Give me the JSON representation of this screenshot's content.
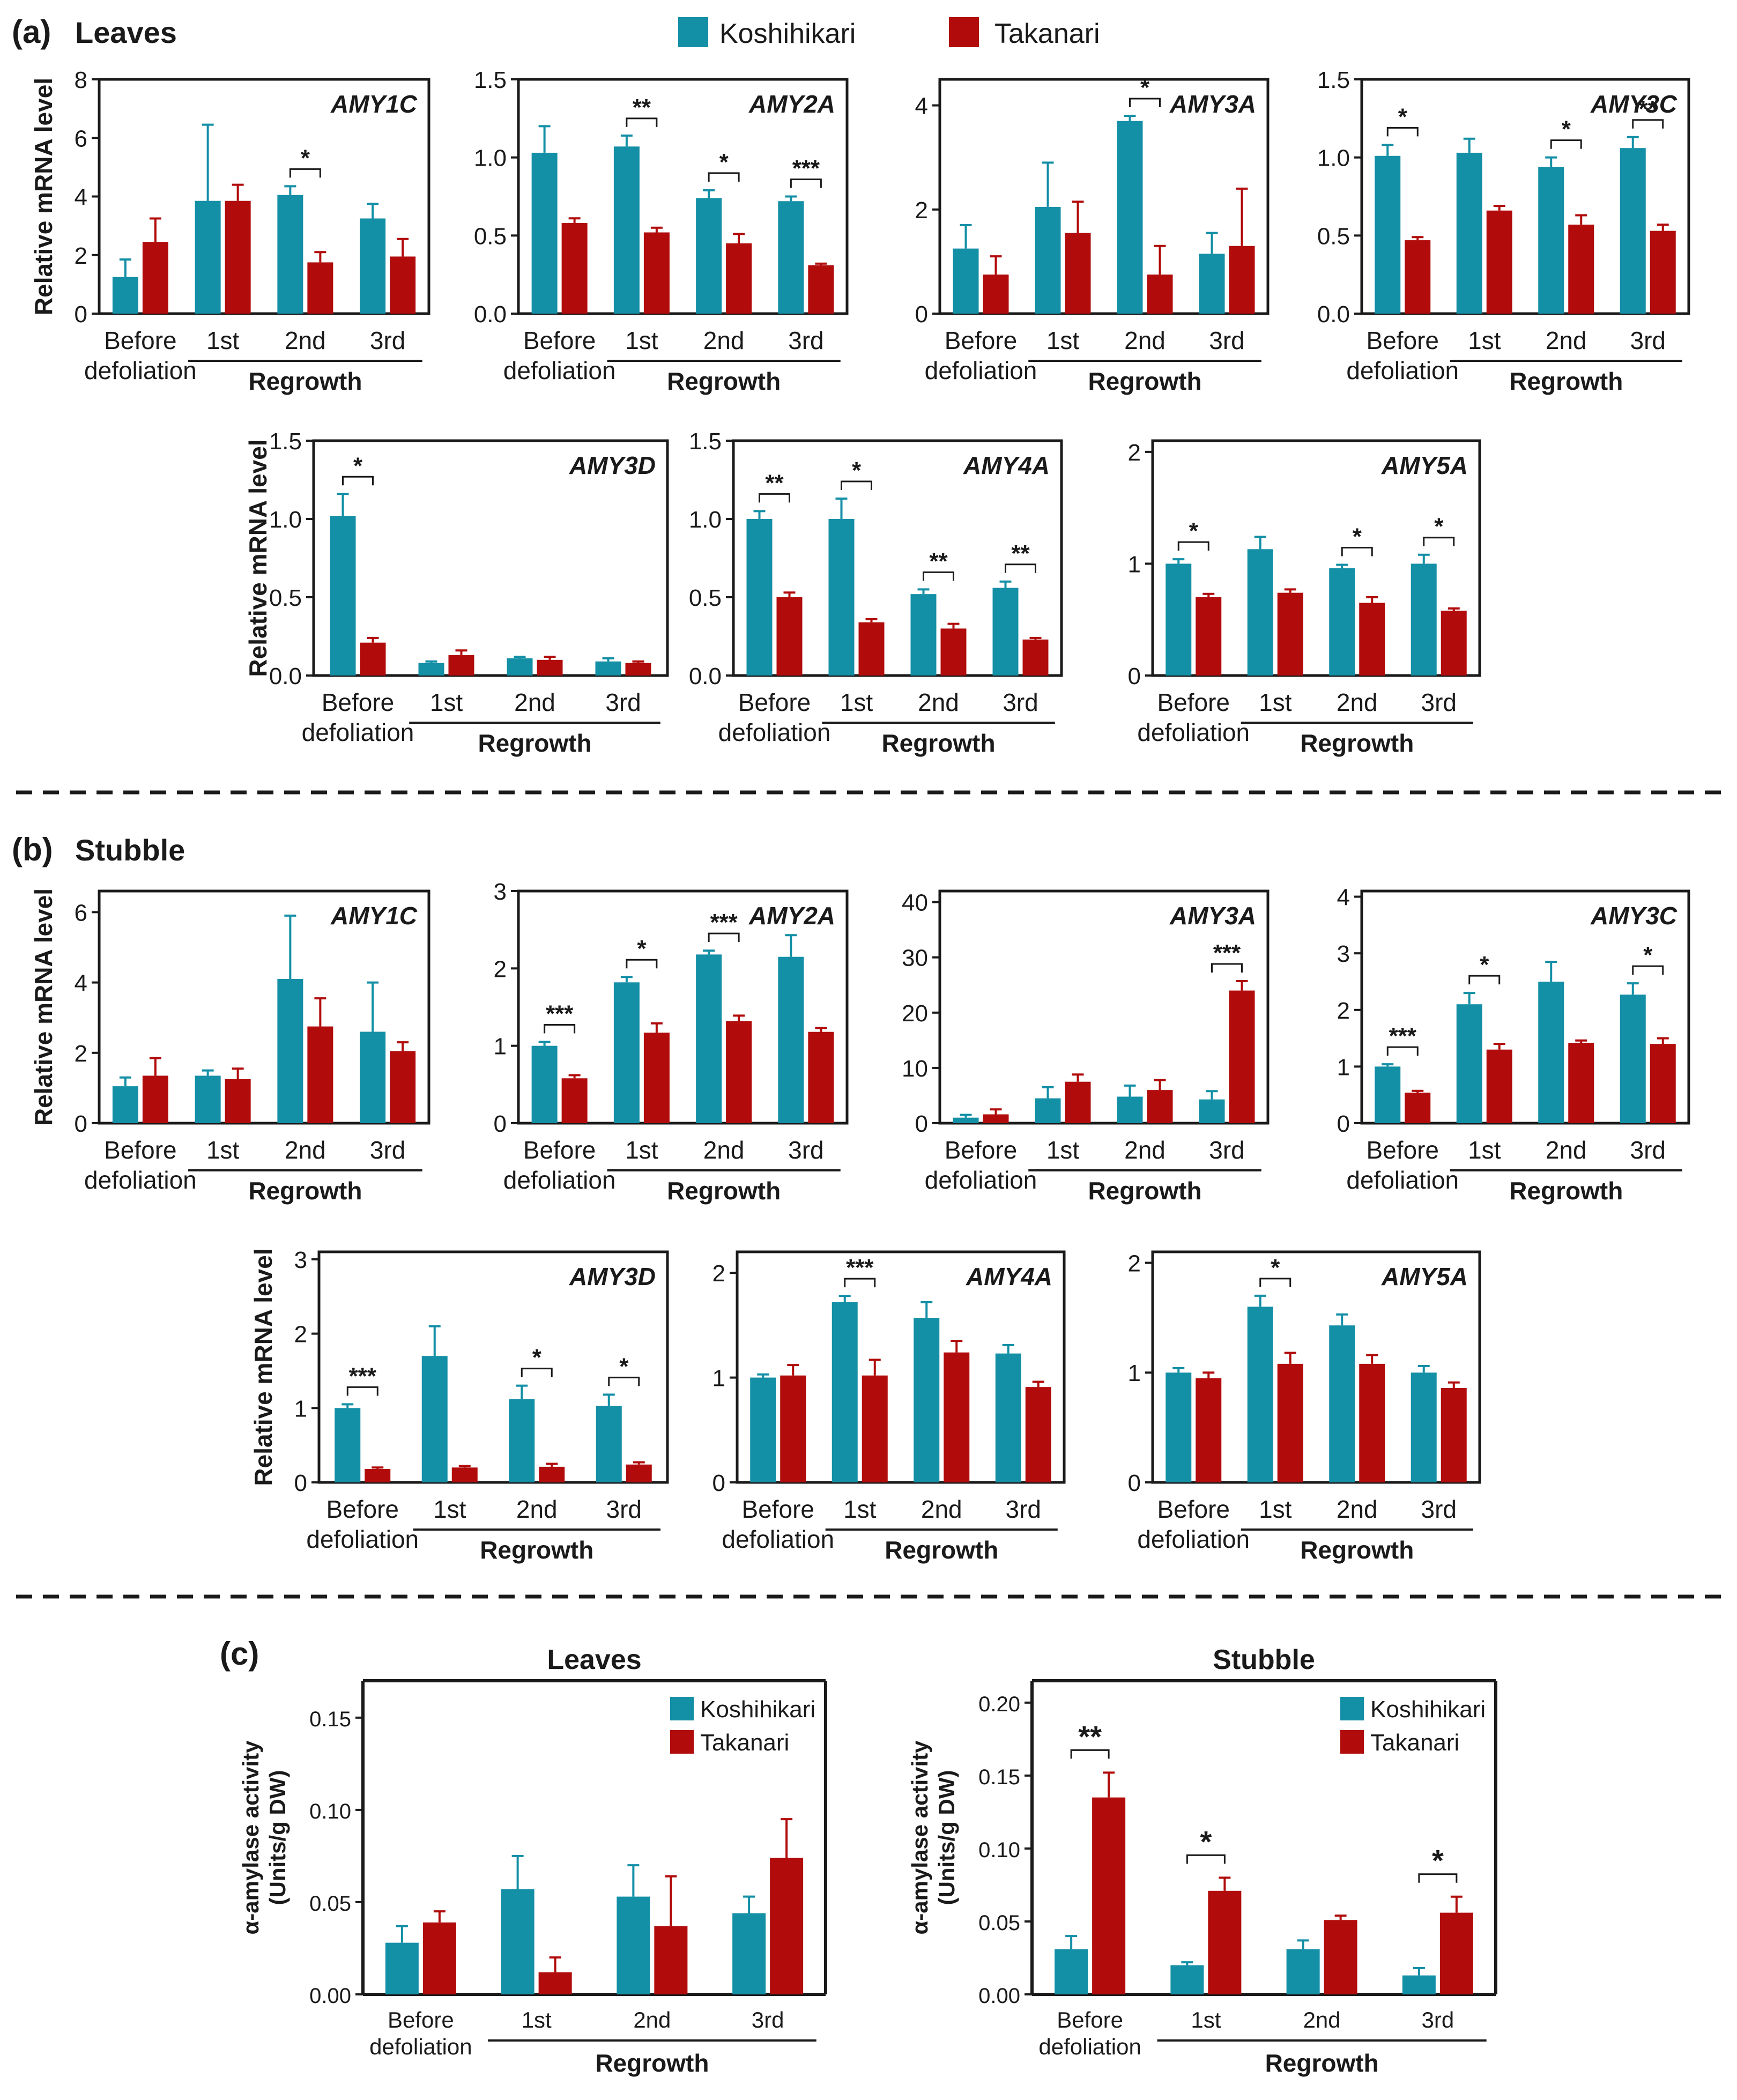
{
  "legend": {
    "koshihikari": "Koshihikari",
    "takanari": "Takanari"
  },
  "colors": {
    "koshihikari": "#138fa6",
    "takanari": "#b10b0b",
    "axis": "#1a1a1a"
  },
  "panels": {
    "a": {
      "letter": "(a)",
      "title": "Leaves"
    },
    "b": {
      "letter": "(b)",
      "title": "Stubble"
    },
    "c": {
      "letter": "(c)"
    }
  },
  "axis_text": {
    "ylabel_mrna": "Relative mRNA level",
    "ylabel_activity_1": "α-amylase activity",
    "ylabel_activity_2": "(Units/g DW)",
    "before_1": "Before",
    "before_2": "defoliation",
    "regrowth": "Regrowth"
  },
  "chart_data": [
    {
      "id": "a1",
      "type": "bar",
      "title": "AMY1C",
      "group": "Leaves",
      "categories": [
        "Before defoliation",
        "1st",
        "2nd",
        "3rd"
      ],
      "ylim": [
        0,
        8
      ],
      "yticks": [
        "0",
        "2",
        "4",
        "6",
        "8"
      ],
      "ylabel": "Relative mRNA level",
      "series": [
        {
          "name": "Koshihikari",
          "values": [
            1.25,
            3.85,
            4.05,
            3.25
          ],
          "errors": [
            0.6,
            2.6,
            0.3,
            0.5
          ]
        },
        {
          "name": "Takanari",
          "values": [
            2.45,
            3.85,
            1.75,
            1.95
          ],
          "errors": [
            0.8,
            0.55,
            0.35,
            0.6
          ]
        }
      ],
      "significance": [
        {
          "category": 2,
          "label": "*"
        }
      ]
    },
    {
      "id": "a2",
      "type": "bar",
      "title": "AMY2A",
      "group": "Leaves",
      "categories": [
        "Before defoliation",
        "1st",
        "2nd",
        "3rd"
      ],
      "ylim": [
        0,
        1.5
      ],
      "yticks": [
        "0.0",
        "0.5",
        "1.0",
        "1.5"
      ],
      "series": [
        {
          "name": "Koshihikari",
          "values": [
            1.03,
            1.07,
            0.74,
            0.72
          ],
          "errors": [
            0.17,
            0.07,
            0.05,
            0.03
          ]
        },
        {
          "name": "Takanari",
          "values": [
            0.58,
            0.52,
            0.45,
            0.31
          ],
          "errors": [
            0.03,
            0.03,
            0.06,
            0.01
          ]
        }
      ],
      "significance": [
        {
          "category": 1,
          "label": "**"
        },
        {
          "category": 2,
          "label": "*"
        },
        {
          "category": 3,
          "label": "***"
        }
      ]
    },
    {
      "id": "a3",
      "type": "bar",
      "title": "AMY3A",
      "group": "Leaves",
      "categories": [
        "Before defoliation",
        "1st",
        "2nd",
        "3rd"
      ],
      "ylim": [
        0,
        4.5
      ],
      "yticks": [
        "0",
        "2",
        "4"
      ],
      "series": [
        {
          "name": "Koshihikari",
          "values": [
            1.25,
            2.05,
            3.7,
            1.15
          ],
          "errors": [
            0.45,
            0.85,
            0.1,
            0.4
          ]
        },
        {
          "name": "Takanari",
          "values": [
            0.75,
            1.55,
            0.75,
            1.3
          ],
          "errors": [
            0.35,
            0.6,
            0.55,
            1.1
          ]
        }
      ],
      "significance": [
        {
          "category": 2,
          "label": "*"
        }
      ]
    },
    {
      "id": "a4",
      "type": "bar",
      "title": "AMY3C",
      "group": "Leaves",
      "categories": [
        "Before defoliation",
        "1st",
        "2nd",
        "3rd"
      ],
      "ylim": [
        0,
        1.5
      ],
      "yticks": [
        "0.0",
        "0.5",
        "1.0",
        "1.5"
      ],
      "series": [
        {
          "name": "Koshihikari",
          "values": [
            1.01,
            1.03,
            0.94,
            1.06
          ],
          "errors": [
            0.07,
            0.09,
            0.06,
            0.07
          ]
        },
        {
          "name": "Takanari",
          "values": [
            0.47,
            0.66,
            0.57,
            0.53
          ],
          "errors": [
            0.02,
            0.03,
            0.06,
            0.04
          ]
        }
      ],
      "significance": [
        {
          "category": 0,
          "label": "*"
        },
        {
          "category": 2,
          "label": "*"
        },
        {
          "category": 3,
          "label": "**"
        }
      ]
    },
    {
      "id": "a5",
      "type": "bar",
      "title": "AMY3D",
      "group": "Leaves",
      "categories": [
        "Before defoliation",
        "1st",
        "2nd",
        "3rd"
      ],
      "ylim": [
        0,
        1.5
      ],
      "yticks": [
        "0.0",
        "0.5",
        "1.0",
        "1.5"
      ],
      "ylabel": "Relative mRNA level",
      "series": [
        {
          "name": "Koshihikari",
          "values": [
            1.02,
            0.08,
            0.11,
            0.09
          ],
          "errors": [
            0.14,
            0.01,
            0.01,
            0.02
          ]
        },
        {
          "name": "Takanari",
          "values": [
            0.21,
            0.13,
            0.1,
            0.08
          ],
          "errors": [
            0.03,
            0.03,
            0.02,
            0.01
          ]
        }
      ],
      "significance": [
        {
          "category": 0,
          "label": "*"
        }
      ]
    },
    {
      "id": "a6",
      "type": "bar",
      "title": "AMY4A",
      "group": "Leaves",
      "categories": [
        "Before defoliation",
        "1st",
        "2nd",
        "3rd"
      ],
      "ylim": [
        0,
        1.5
      ],
      "yticks": [
        "0.0",
        "0.5",
        "1.0",
        "1.5"
      ],
      "series": [
        {
          "name": "Koshihikari",
          "values": [
            1.0,
            1.0,
            0.52,
            0.56
          ],
          "errors": [
            0.05,
            0.13,
            0.03,
            0.04
          ]
        },
        {
          "name": "Takanari",
          "values": [
            0.5,
            0.34,
            0.3,
            0.23
          ],
          "errors": [
            0.03,
            0.02,
            0.03,
            0.01
          ]
        }
      ],
      "significance": [
        {
          "category": 0,
          "label": "**"
        },
        {
          "category": 1,
          "label": "*"
        },
        {
          "category": 2,
          "label": "**"
        },
        {
          "category": 3,
          "label": "**"
        }
      ]
    },
    {
      "id": "a7",
      "type": "bar",
      "title": "AMY5A",
      "group": "Leaves",
      "categories": [
        "Before defoliation",
        "1st",
        "2nd",
        "3rd"
      ],
      "ylim": [
        0,
        2.1
      ],
      "yticks": [
        "0",
        "1",
        "2"
      ],
      "series": [
        {
          "name": "Koshihikari",
          "values": [
            1.0,
            1.13,
            0.96,
            1.0
          ],
          "errors": [
            0.04,
            0.11,
            0.03,
            0.08
          ]
        },
        {
          "name": "Takanari",
          "values": [
            0.7,
            0.74,
            0.65,
            0.58
          ],
          "errors": [
            0.03,
            0.03,
            0.05,
            0.02
          ]
        }
      ],
      "significance": [
        {
          "category": 0,
          "label": "*"
        },
        {
          "category": 2,
          "label": "*"
        },
        {
          "category": 3,
          "label": "*"
        }
      ]
    },
    {
      "id": "b1",
      "type": "bar",
      "title": "AMY1C",
      "group": "Stubble",
      "categories": [
        "Before defoliation",
        "1st",
        "2nd",
        "3rd"
      ],
      "ylim": [
        0,
        6.6
      ],
      "yticks": [
        "0",
        "2",
        "4",
        "6"
      ],
      "ylabel": "Relative mRNA level",
      "series": [
        {
          "name": "Koshihikari",
          "values": [
            1.05,
            1.35,
            4.1,
            2.6
          ],
          "errors": [
            0.25,
            0.15,
            1.8,
            1.4
          ]
        },
        {
          "name": "Takanari",
          "values": [
            1.35,
            1.25,
            2.75,
            2.05
          ],
          "errors": [
            0.5,
            0.3,
            0.8,
            0.25
          ]
        }
      ],
      "significance": []
    },
    {
      "id": "b2",
      "type": "bar",
      "title": "AMY2A",
      "group": "Stubble",
      "categories": [
        "Before defoliation",
        "1st",
        "2nd",
        "3rd"
      ],
      "ylim": [
        0,
        3
      ],
      "yticks": [
        "0",
        "1",
        "2",
        "3"
      ],
      "series": [
        {
          "name": "Koshihikari",
          "values": [
            1.0,
            1.82,
            2.18,
            2.15
          ],
          "errors": [
            0.05,
            0.07,
            0.05,
            0.28
          ]
        },
        {
          "name": "Takanari",
          "values": [
            0.58,
            1.17,
            1.32,
            1.18
          ],
          "errors": [
            0.04,
            0.12,
            0.07,
            0.05
          ]
        }
      ],
      "significance": [
        {
          "category": 0,
          "label": "***"
        },
        {
          "category": 1,
          "label": "*"
        },
        {
          "category": 2,
          "label": "***"
        }
      ]
    },
    {
      "id": "b3",
      "type": "bar",
      "title": "AMY3A",
      "group": "Stubble",
      "categories": [
        "Before defoliation",
        "1st",
        "2nd",
        "3rd"
      ],
      "ylim": [
        0,
        42
      ],
      "yticks": [
        "0",
        "10",
        "20",
        "30",
        "40"
      ],
      "series": [
        {
          "name": "Koshihikari",
          "values": [
            1.0,
            4.5,
            4.8,
            4.3
          ],
          "errors": [
            0.5,
            2.0,
            2.0,
            1.5
          ]
        },
        {
          "name": "Takanari",
          "values": [
            1.6,
            7.5,
            6.0,
            24.0
          ],
          "errors": [
            0.9,
            1.3,
            1.8,
            1.7
          ]
        }
      ],
      "significance": [
        {
          "category": 3,
          "label": "***"
        }
      ]
    },
    {
      "id": "b4",
      "type": "bar",
      "title": "AMY3C",
      "group": "Stubble",
      "categories": [
        "Before defoliation",
        "1st",
        "2nd",
        "3rd"
      ],
      "ylim": [
        0,
        4.1
      ],
      "yticks": [
        "0",
        "1",
        "2",
        "3",
        "4"
      ],
      "series": [
        {
          "name": "Koshihikari",
          "values": [
            1.0,
            2.1,
            2.5,
            2.27
          ],
          "errors": [
            0.04,
            0.2,
            0.35,
            0.2
          ]
        },
        {
          "name": "Takanari",
          "values": [
            0.54,
            1.3,
            1.42,
            1.4
          ],
          "errors": [
            0.03,
            0.1,
            0.04,
            0.1
          ]
        }
      ],
      "significance": [
        {
          "category": 0,
          "label": "***"
        },
        {
          "category": 1,
          "label": "*"
        },
        {
          "category": 3,
          "label": "*"
        }
      ]
    },
    {
      "id": "b5",
      "type": "bar",
      "title": "AMY3D",
      "group": "Stubble",
      "categories": [
        "Before defoliation",
        "1st",
        "2nd",
        "3rd"
      ],
      "ylim": [
        0,
        3.1
      ],
      "yticks": [
        "0",
        "1",
        "2",
        "3"
      ],
      "ylabel": "Relative mRNA level",
      "series": [
        {
          "name": "Koshihikari",
          "values": [
            1.0,
            1.7,
            1.12,
            1.03
          ],
          "errors": [
            0.05,
            0.4,
            0.18,
            0.15
          ]
        },
        {
          "name": "Takanari",
          "values": [
            0.18,
            0.2,
            0.21,
            0.24
          ],
          "errors": [
            0.02,
            0.02,
            0.04,
            0.03
          ]
        }
      ],
      "significance": [
        {
          "category": 0,
          "label": "***"
        },
        {
          "category": 2,
          "label": "*"
        },
        {
          "category": 3,
          "label": "*"
        }
      ]
    },
    {
      "id": "b6",
      "type": "bar",
      "title": "AMY4A",
      "group": "Stubble",
      "categories": [
        "Before defoliation",
        "1st",
        "2nd",
        "3rd"
      ],
      "ylim": [
        0,
        2.2
      ],
      "yticks": [
        "0",
        "1",
        "2"
      ],
      "series": [
        {
          "name": "Koshihikari",
          "values": [
            1.0,
            1.72,
            1.57,
            1.23
          ],
          "errors": [
            0.03,
            0.06,
            0.15,
            0.08
          ]
        },
        {
          "name": "Takanari",
          "values": [
            1.02,
            1.02,
            1.24,
            0.91
          ],
          "errors": [
            0.1,
            0.15,
            0.11,
            0.05
          ]
        }
      ],
      "significance": [
        {
          "category": 1,
          "label": "***"
        }
      ]
    },
    {
      "id": "b7",
      "type": "bar",
      "title": "AMY5A",
      "group": "Stubble",
      "categories": [
        "Before defoliation",
        "1st",
        "2nd",
        "3rd"
      ],
      "ylim": [
        0,
        2.1
      ],
      "yticks": [
        "0",
        "1",
        "2"
      ],
      "series": [
        {
          "name": "Koshihikari",
          "values": [
            1.0,
            1.6,
            1.43,
            1.0
          ],
          "errors": [
            0.04,
            0.1,
            0.1,
            0.06
          ]
        },
        {
          "name": "Takanari",
          "values": [
            0.95,
            1.08,
            1.08,
            0.86
          ],
          "errors": [
            0.05,
            0.1,
            0.08,
            0.05
          ]
        }
      ],
      "significance": [
        {
          "category": 1,
          "label": "*"
        }
      ]
    },
    {
      "id": "c1",
      "type": "bar",
      "title": "Leaves",
      "group": "α-amylase activity",
      "categories": [
        "Before defoliation",
        "1st",
        "2nd",
        "3rd"
      ],
      "ylim": [
        0,
        0.17
      ],
      "yticks": [
        "0.00",
        "0.05",
        "0.10",
        "0.15"
      ],
      "ylabel": "α-amylase activity (Units/g DW)",
      "series": [
        {
          "name": "Koshihikari",
          "values": [
            0.028,
            0.057,
            0.053,
            0.044
          ],
          "errors": [
            0.009,
            0.018,
            0.017,
            0.009
          ]
        },
        {
          "name": "Takanari",
          "values": [
            0.039,
            0.012,
            0.037,
            0.074
          ],
          "errors": [
            0.006,
            0.008,
            0.027,
            0.021
          ]
        }
      ],
      "significance": [],
      "legend": "top-right"
    },
    {
      "id": "c2",
      "type": "bar",
      "title": "Stubble",
      "group": "α-amylase activity",
      "categories": [
        "Before defoliation",
        "1st",
        "2nd",
        "3rd"
      ],
      "ylim": [
        0,
        0.215
      ],
      "yticks": [
        "0.00",
        "0.05",
        "0.10",
        "0.15",
        "0.20"
      ],
      "ylabel": "α-amylase activity (Units/g DW)",
      "series": [
        {
          "name": "Koshihikari",
          "values": [
            0.031,
            0.02,
            0.031,
            0.013
          ],
          "errors": [
            0.009,
            0.002,
            0.006,
            0.005
          ]
        },
        {
          "name": "Takanari",
          "values": [
            0.135,
            0.071,
            0.051,
            0.056
          ],
          "errors": [
            0.017,
            0.009,
            0.003,
            0.011
          ]
        }
      ],
      "significance": [
        {
          "category": 0,
          "label": "**"
        },
        {
          "category": 1,
          "label": "*"
        },
        {
          "category": 3,
          "label": "*"
        }
      ],
      "legend": "top-right"
    }
  ]
}
